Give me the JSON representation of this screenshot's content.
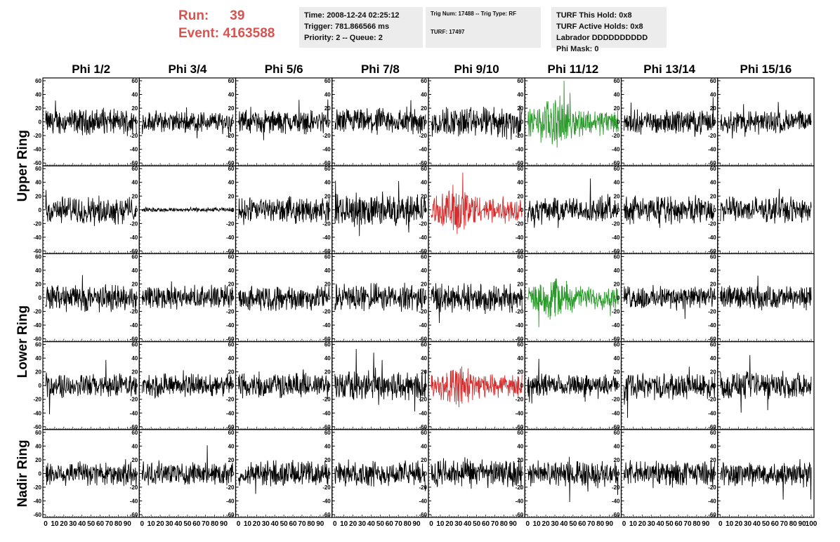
{
  "header": {
    "run_label": "Run:",
    "run_value": "39",
    "event_label": "Event:",
    "event_value": "4163588",
    "time": "Time: 2008-12-24 02:25:12",
    "trigger": "Trigger: 781.866566 ms",
    "priority": "Priority: 2 -- Queue: 2",
    "trig_num": "Trig Num: 17488 -- Trig Type: RF",
    "turf": "TURF: 17497",
    "turf_hold": "TURF This Hold: 0x8",
    "turf_active": "TURF Active Holds: 0x8",
    "labrador": "Labrador DDDDDDDDDD",
    "phi_mask": "Phi Mask: 0"
  },
  "chart_data": {
    "type": "line",
    "columns": [
      "Phi 1/2",
      "Phi 3/4",
      "Phi 5/6",
      "Phi 7/8",
      "Phi 9/10",
      "Phi 11/12",
      "Phi 13/14",
      "Phi 15/16"
    ],
    "rows": [
      "Upper Ring",
      "",
      "Lower Ring",
      "",
      "Nadir Ring"
    ],
    "row_label_spans": [
      {
        "label": "Upper Ring",
        "rows": [
          0,
          1
        ]
      },
      {
        "label": "Lower Ring",
        "rows": [
          2,
          3
        ]
      },
      {
        "label": "Nadir Ring",
        "rows": [
          4
        ]
      }
    ],
    "xlim": [
      0,
      100
    ],
    "ylim": [
      -60,
      60
    ],
    "x_ticks": [
      0,
      10,
      20,
      30,
      40,
      50,
      60,
      70,
      80,
      90,
      100
    ],
    "x_tick_labels": [
      "0",
      "10",
      "20",
      "30",
      "40",
      "50",
      "60",
      "70",
      "80",
      "90",
      "100"
    ],
    "y_ticks": [
      -60,
      -40,
      -20,
      0,
      20,
      40,
      60
    ],
    "y_tick_labels": [
      "-60",
      "-40",
      "-20",
      "0",
      "20",
      "40",
      "60"
    ],
    "samples_per_trace": 260,
    "amplitude": [
      [
        14,
        12,
        13,
        15,
        17,
        15,
        13,
        13
      ],
      [
        15,
        2.5,
        14,
        18,
        15,
        14,
        15,
        14
      ],
      [
        15,
        13,
        14,
        15,
        16,
        13,
        13,
        13
      ],
      [
        13,
        13,
        14,
        17,
        13,
        12,
        14,
        15
      ],
      [
        14,
        13,
        14,
        14,
        16,
        14,
        14,
        14
      ]
    ],
    "colors": {
      "normal": "#000000",
      "phi_sector_trigger": "#2a9a2a",
      "l3_trigger": "#d62c2c"
    },
    "trace_color": [
      [
        "normal",
        "normal",
        "normal",
        "normal",
        "normal",
        "phi_sector_trigger",
        "normal",
        "normal"
      ],
      [
        "normal",
        "normal",
        "normal",
        "normal",
        "l3_trigger",
        "normal",
        "normal",
        "normal"
      ],
      [
        "normal",
        "normal",
        "normal",
        "normal",
        "normal",
        "phi_sector_trigger",
        "normal",
        "normal"
      ],
      [
        "normal",
        "normal",
        "normal",
        "normal",
        "l3_trigger",
        "normal",
        "normal",
        "normal"
      ],
      [
        "normal",
        "normal",
        "normal",
        "normal",
        "normal",
        "normal",
        "normal",
        "normal"
      ]
    ],
    "pulse": [
      [
        0,
        0,
        0,
        0,
        0,
        1,
        0,
        0
      ],
      [
        0,
        0,
        0,
        0,
        1,
        0,
        0,
        0
      ],
      [
        0,
        0,
        0,
        0,
        0,
        1,
        0,
        0
      ],
      [
        0,
        0,
        0,
        0,
        1,
        0,
        0,
        0
      ],
      [
        0,
        0,
        0,
        0,
        0,
        0,
        0,
        0
      ]
    ]
  }
}
